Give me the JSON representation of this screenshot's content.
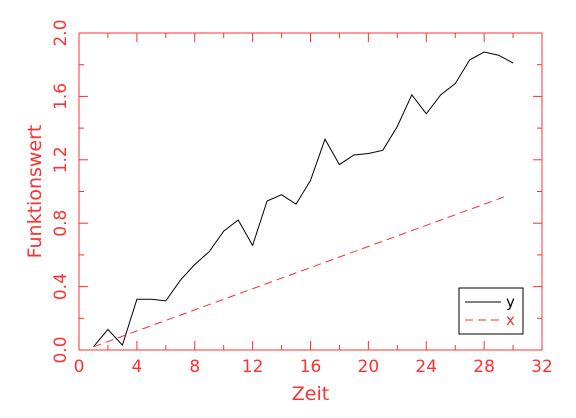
{
  "chart_data": {
    "type": "line",
    "xlabel": "Zeit",
    "ylabel": "Funktionswert",
    "xlim": [
      0,
      32
    ],
    "ylim": [
      0,
      2
    ],
    "x_ticks": [
      "0",
      "4",
      "8",
      "12",
      "16",
      "20",
      "24",
      "28",
      "32"
    ],
    "y_ticks": [
      "0.0",
      "0.4",
      "0.8",
      "1.2",
      "1.6",
      "2.0"
    ],
    "grid": false,
    "legend_position": "bottom-right",
    "series": [
      {
        "name": "y",
        "color": "#000000",
        "style": "solid",
        "x": [
          1,
          2,
          3,
          4,
          5,
          6,
          7,
          8,
          9,
          10,
          11,
          12,
          13,
          14,
          15,
          16,
          17,
          18,
          19,
          20,
          21,
          22,
          23,
          24,
          25,
          26,
          27,
          28,
          29,
          30
        ],
        "values": [
          0.02,
          0.13,
          0.03,
          0.32,
          0.32,
          0.31,
          0.44,
          0.54,
          0.62,
          0.75,
          0.82,
          0.66,
          0.94,
          0.98,
          0.92,
          1.07,
          1.33,
          1.17,
          1.23,
          1.24,
          1.26,
          1.41,
          1.61,
          1.49,
          1.61,
          1.68,
          1.83,
          1.88,
          1.86,
          1.81
        ]
      },
      {
        "name": "x",
        "color": "#ff3030",
        "style": "dashed",
        "x": [
          1,
          29.5
        ],
        "values": [
          0.02,
          0.97
        ]
      }
    ]
  }
}
